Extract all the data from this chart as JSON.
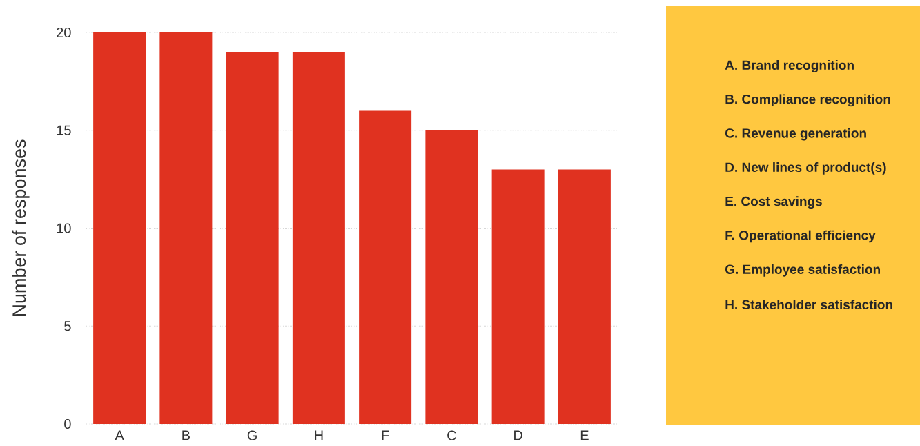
{
  "chart_data": {
    "type": "bar",
    "ylabel": "Number of responses",
    "categories": [
      "A",
      "B",
      "G",
      "H",
      "F",
      "C",
      "D",
      "E"
    ],
    "values": [
      20,
      20,
      19,
      19,
      16,
      15,
      13,
      13
    ],
    "color": "#e03220",
    "ylim": [
      0,
      20
    ],
    "yticks": [
      0,
      5,
      10,
      15,
      20
    ],
    "grid": "y",
    "annotations": [
      "A. Brand recognition",
      "B. Compliance recognition",
      "C. Revenue generation",
      "D. New lines of product(s)",
      "E. Cost savings",
      "F. Operational efficiency",
      "G. Employee satisfaction",
      "H. Stakeholder satisfaction"
    ]
  }
}
